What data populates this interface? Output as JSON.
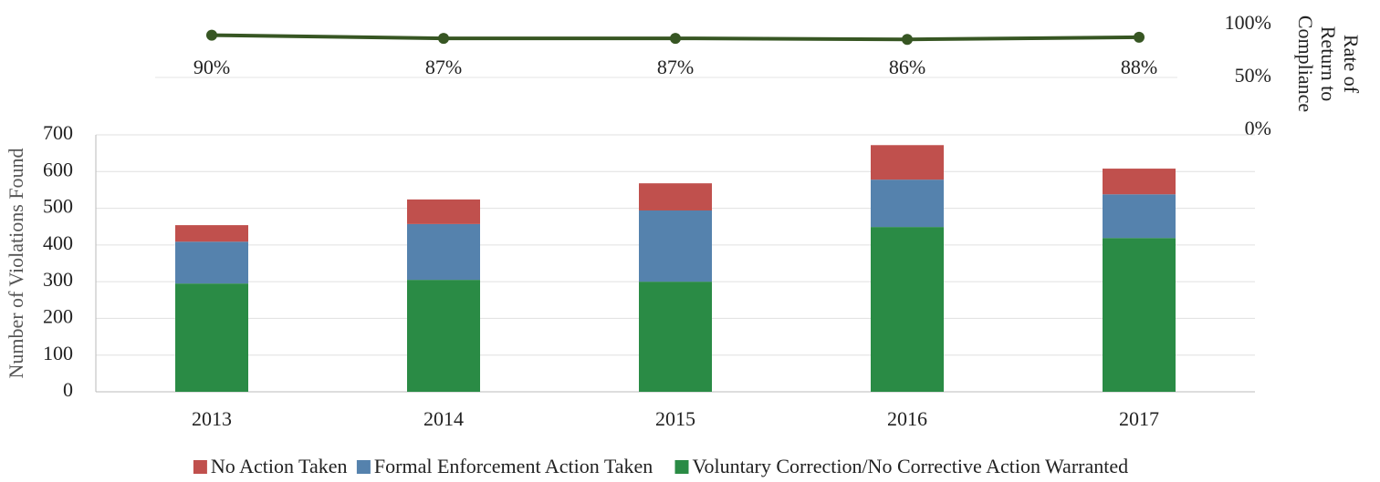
{
  "chart_data": [
    {
      "type": "line",
      "y_label": [
        "Rate of",
        "Return to",
        "Compliance"
      ],
      "values": [
        90,
        87,
        87,
        86,
        88
      ],
      "value_labels": [
        "90%",
        "87%",
        "87%",
        "86%",
        "88%"
      ],
      "color": "#375623",
      "ylim": [
        0,
        100
      ],
      "yticks": [
        {
          "value": 0,
          "label": "0%"
        },
        {
          "value": 50,
          "label": "50%"
        },
        {
          "value": 100,
          "label": "100%"
        }
      ]
    },
    {
      "type": "stacked_bar",
      "y_label": "Number of Violations Found",
      "categories": [
        "2013",
        "2014",
        "2015",
        "2016",
        "2017"
      ],
      "series": [
        {
          "name": "Voluntary Correction/No Corrective Action Warranted",
          "color": "#2a8b45",
          "values": [
            295,
            305,
            300,
            449,
            419
          ]
        },
        {
          "name": "Formal Enforcement Action Taken",
          "color": "#5582ad",
          "values": [
            114,
            152,
            194,
            129,
            119
          ]
        },
        {
          "name": "No Action Taken",
          "color": "#c0504d",
          "values": [
            45,
            67,
            74,
            94,
            70
          ]
        }
      ],
      "ylim": [
        0,
        700
      ],
      "yticks": [
        0,
        100,
        200,
        300,
        400,
        500,
        600,
        700
      ],
      "grid": true
    }
  ]
}
